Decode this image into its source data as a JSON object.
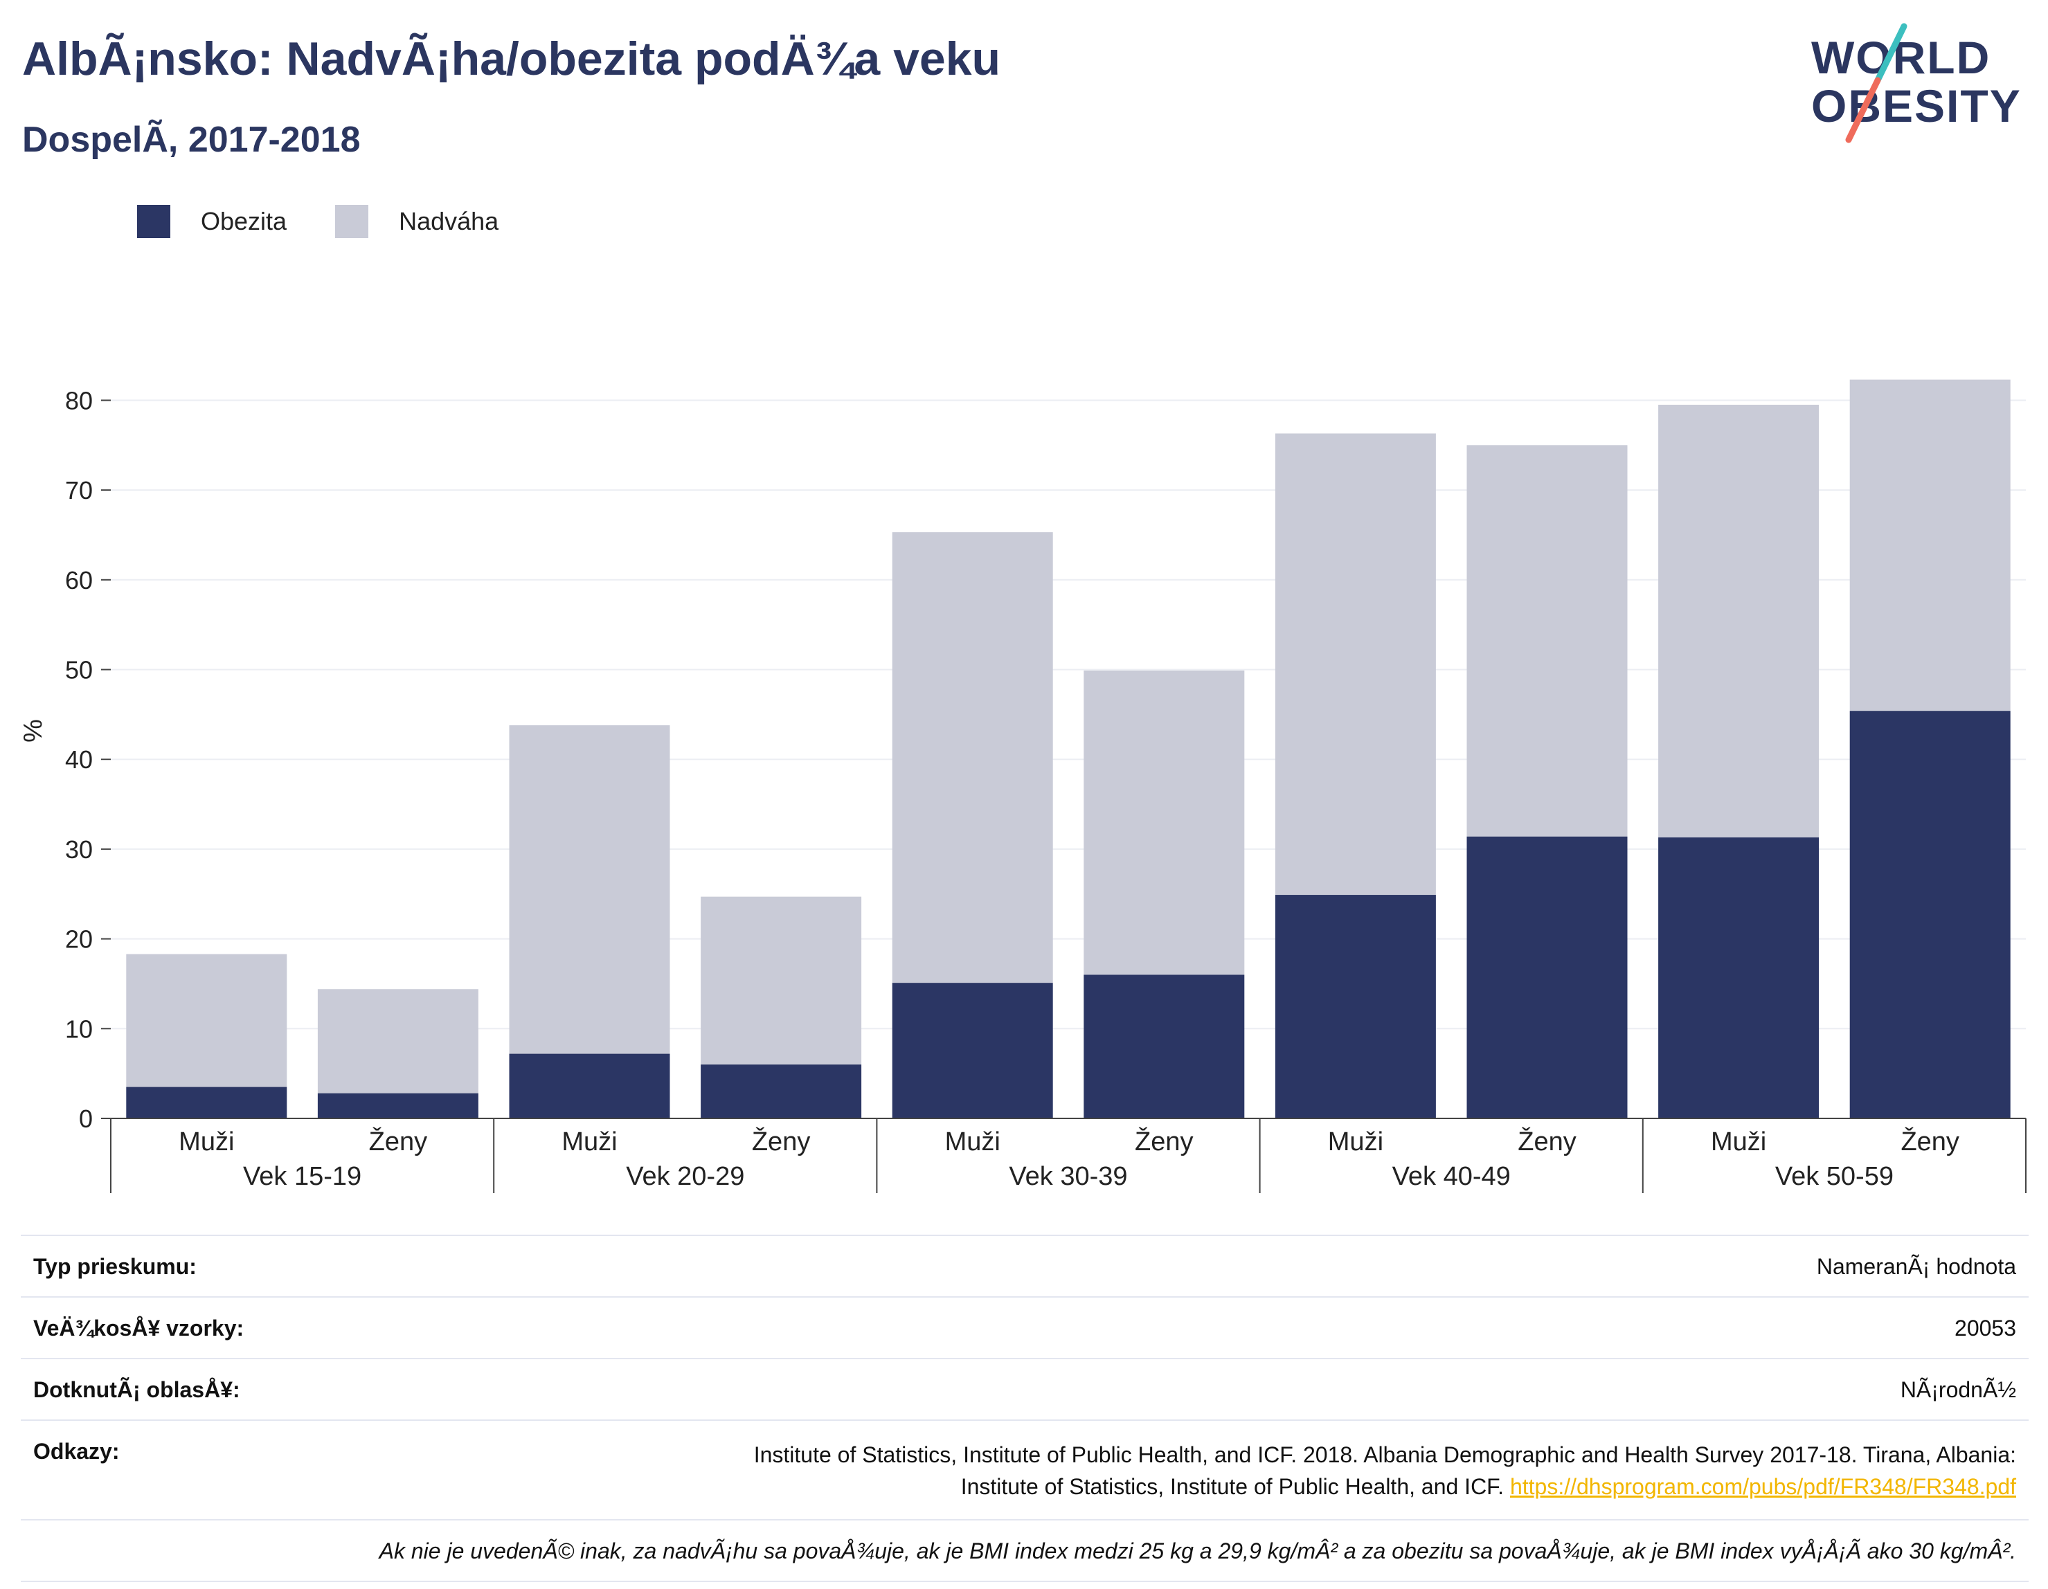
{
  "title": "AlbÃ¡nsko: NadvÃ¡ha/obezita podÄ¾a veku",
  "subtitle": "DospelÃ­, 2017-2018",
  "logo": {
    "line1": "WORLD",
    "line2": "OBESITY"
  },
  "legend": [
    {
      "label": "Obezita",
      "color": "#2b3664"
    },
    {
      "label": "Nadváha",
      "color": "#c9cbd7"
    }
  ],
  "chart_data": {
    "type": "bar",
    "stacked": true,
    "ylabel": "%",
    "ylim": [
      0,
      82
    ],
    "yticks": [
      0,
      10,
      20,
      30,
      40,
      50,
      60,
      70,
      80
    ],
    "grid": true,
    "legend_position": "top-left",
    "groups": [
      "Vek 15-19",
      "Vek 20-29",
      "Vek 30-39",
      "Vek 40-49",
      "Vek 50-59"
    ],
    "subcategories": [
      "Muži",
      "Ženy"
    ],
    "categories": [
      "Muži",
      "Ženy",
      "Muži",
      "Ženy",
      "Muži",
      "Ženy",
      "Muži",
      "Ženy",
      "Muži",
      "Ženy"
    ],
    "series": [
      {
        "name": "Obezita",
        "color": "#2b3664",
        "values": [
          3.5,
          2.8,
          7.2,
          6.0,
          15.1,
          16.0,
          24.9,
          31.4,
          31.3,
          45.4
        ]
      },
      {
        "name": "Nadváha",
        "color": "#c9cbd7",
        "values": [
          14.8,
          11.6,
          36.6,
          18.7,
          50.2,
          33.9,
          51.4,
          43.6,
          48.2,
          36.9
        ]
      }
    ]
  },
  "info": {
    "survey_type": {
      "label": "Typ prieskumu:",
      "value": "NameranÃ¡ hodnota"
    },
    "sample_size": {
      "label": "VeÄ¾kosÅ¥ vzorky:",
      "value": "20053"
    },
    "area": {
      "label": "DotknutÃ¡ oblasÅ¥:",
      "value": "NÃ¡rodnÃ½"
    },
    "references": {
      "label": "Odkazy:",
      "line1": "Institute of Statistics, Institute of Public Health, and ICF. 2018. Albania Demographic and Health Survey 2017-18. Tirana, Albania:",
      "line2": "Institute of Statistics, Institute of Public Health, and ICF.",
      "link": "https://dhsprogram.com/pubs/pdf/FR348/FR348.pdf"
    },
    "note": "Ak nie je uvedenÃ© inak, za nadvÃ¡hu sa povaÅ¾uje, ak je BMI index medzi 25 kg a 29,9 kg/mÂ² a za obezitu sa povaÅ¾uje, ak je BMI index vyÅ¡Å¡Ã­ ako 30 kg/mÂ²."
  }
}
